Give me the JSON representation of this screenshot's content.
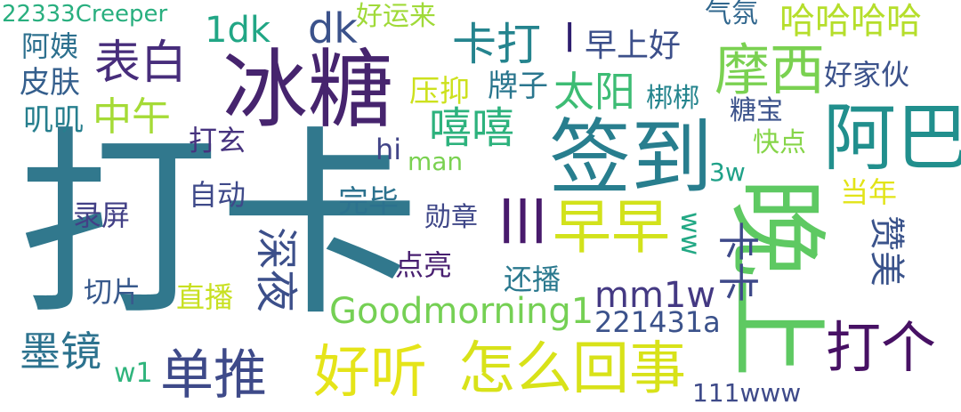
{
  "cloud": {
    "words": [
      {
        "text": "打卡",
        "color": "#31788d"
      },
      {
        "text": "冰糖",
        "color": "#46246e"
      },
      {
        "text": "签到",
        "color": "#287e8e"
      },
      {
        "text": "晚上",
        "color": "#5ec962"
      },
      {
        "text": "阿巴",
        "color": "#218f8d"
      },
      {
        "text": "摩西",
        "color": "#7ad151"
      },
      {
        "text": "早早",
        "color": "#d2e21b"
      },
      {
        "text": "好听",
        "color": "#e5e419"
      },
      {
        "text": "怎么回事",
        "color": "#d8e219"
      },
      {
        "text": "单推",
        "color": "#3e4a89"
      },
      {
        "text": "打个",
        "color": "#471164"
      },
      {
        "text": "深夜",
        "color": "#3c4f8a"
      },
      {
        "text": "Goodmorning1",
        "color": "#75d054"
      },
      {
        "text": "mm1w",
        "color": "#443983"
      },
      {
        "text": "卡打",
        "color": "#25848e"
      },
      {
        "text": "dk",
        "color": "#3b528b"
      },
      {
        "text": "表白",
        "color": "#472d7b"
      },
      {
        "text": "嘻嘻",
        "color": "#2db27d"
      },
      {
        "text": "太阳",
        "color": "#3dbc74"
      },
      {
        "text": "早上好",
        "color": "#3c4f8a"
      },
      {
        "text": "哈哈哈哈",
        "color": "#b5de2b"
      },
      {
        "text": "中午",
        "color": "#a5db36"
      },
      {
        "text": "墨镜",
        "color": "#2c728e"
      },
      {
        "text": "1dk",
        "color": "#21a685"
      },
      {
        "text": "lll",
        "color": "#481a6c"
      },
      {
        "text": "l",
        "color": "#2e1e6f"
      },
      {
        "text": "卡卡",
        "color": "#3e4989"
      },
      {
        "text": "赞美",
        "color": "#3a538b"
      },
      {
        "text": "22333Creeper",
        "color": "#29af7f"
      },
      {
        "text": "好运来",
        "color": "#a0da39"
      },
      {
        "text": "气氛",
        "color": "#31678e"
      },
      {
        "text": "压抑",
        "color": "#cde11d"
      },
      {
        "text": "牌子",
        "color": "#2a768e"
      },
      {
        "text": "好家伙",
        "color": "#3b528b"
      },
      {
        "text": "阿姨",
        "color": "#2d708e"
      },
      {
        "text": "皮肤",
        "color": "#355f8d"
      },
      {
        "text": "叽叽",
        "color": "#277f8e"
      },
      {
        "text": "梆梆",
        "color": "#25858e"
      },
      {
        "text": "糖宝",
        "color": "#3b528b"
      },
      {
        "text": "快点",
        "color": "#86d549"
      },
      {
        "text": "打玄",
        "color": "#46327e"
      },
      {
        "text": "hi",
        "color": "#414487"
      },
      {
        "text": "man",
        "color": "#7ad151"
      },
      {
        "text": "3w",
        "color": "#1fa188"
      },
      {
        "text": "自动",
        "color": "#3e4989"
      },
      {
        "text": "录屏",
        "color": "#424086"
      },
      {
        "text": "完毕",
        "color": "#2c728e"
      },
      {
        "text": "勋章",
        "color": "#3f4788"
      },
      {
        "text": "当年",
        "color": "#e2e418"
      },
      {
        "text": "ww",
        "color": "#22a884"
      },
      {
        "text": "点亮",
        "color": "#481f70"
      },
      {
        "text": "还播",
        "color": "#2a788e"
      },
      {
        "text": "切片",
        "color": "#38598c"
      },
      {
        "text": "直播",
        "color": "#c8e020"
      },
      {
        "text": "221431a",
        "color": "#3b528b"
      },
      {
        "text": "w1",
        "color": "#2fb47c"
      },
      {
        "text": "111www",
        "color": "#3e4a89"
      }
    ]
  }
}
